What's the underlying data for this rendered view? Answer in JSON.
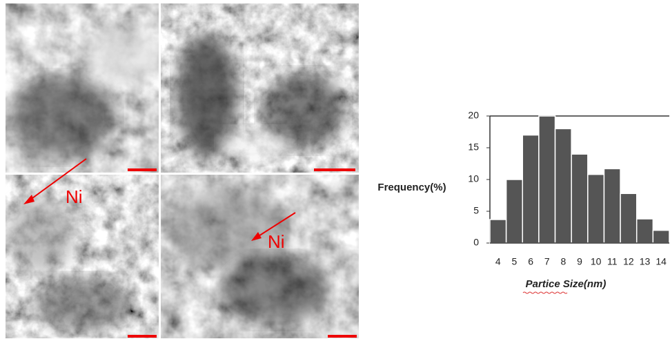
{
  "chart_data": {
    "type": "bar",
    "x_label": "Partice Size(nm)",
    "y_label": "Frequency(%)",
    "categories": [
      "4",
      "5",
      "6",
      "7",
      "8",
      "9",
      "10",
      "11",
      "12",
      "13",
      "14"
    ],
    "values": [
      3.7,
      10,
      17,
      20,
      18,
      14,
      10.8,
      11.7,
      7.8,
      3.8,
      2
    ],
    "color": "#555555",
    "ylim": [
      0,
      20
    ],
    "yticks": [
      0,
      5,
      10,
      15,
      20
    ]
  },
  "figure": {
    "annotations": [
      "Ni",
      "Ni"
    ]
  }
}
